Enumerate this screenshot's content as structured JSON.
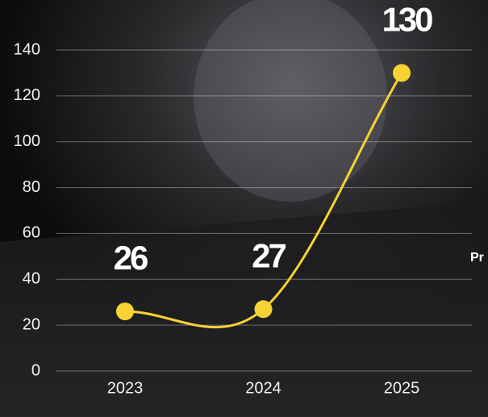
{
  "chart_data": {
    "type": "line",
    "categories": [
      "2023",
      "2024",
      "2025"
    ],
    "values": [
      26,
      27,
      130
    ],
    "color": "#f6d332",
    "ylim": [
      0,
      140
    ],
    "yticks": [
      0,
      20,
      40,
      60,
      80,
      100,
      120,
      140
    ],
    "grid": true,
    "annotation": "Pr"
  }
}
